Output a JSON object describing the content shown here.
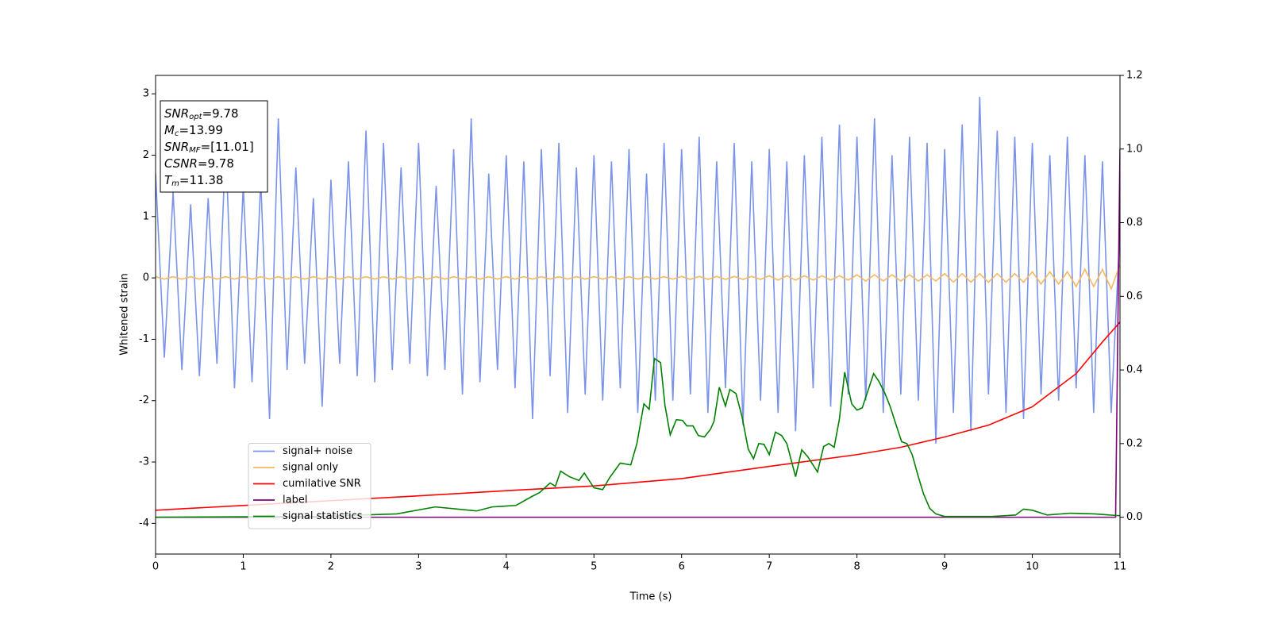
{
  "chart_data": {
    "type": "line",
    "xlabel": "Time (s)",
    "ylabel": "Whitened strain",
    "xlim": [
      0,
      11
    ],
    "xticks": [
      0,
      1,
      2,
      3,
      4,
      5,
      6,
      7,
      8,
      9,
      10,
      11
    ],
    "ylim": [
      -4.5,
      3.3
    ],
    "yticks": [
      -4,
      -3,
      -2,
      -1,
      0,
      1,
      2,
      3
    ],
    "y2lim": [
      -0.1,
      1.2
    ],
    "y2ticks": [
      {
        "value": 0,
        "label": "0.0"
      },
      0.2,
      0.4,
      0.6,
      0.8,
      {
        "value": 1,
        "label": "1.0"
      },
      1.2
    ],
    "legend": "lower left",
    "annotations": [
      {
        "main": "SNR",
        "sub": "opt",
        "rest": "=9.78"
      },
      {
        "main": "M",
        "sub": "c",
        "rest": "=13.99"
      },
      {
        "main": "SNR",
        "sub": "MF",
        "rest": "=[11.01]"
      },
      {
        "main": "CSNR",
        "rest": "=9.78"
      },
      {
        "main": "T",
        "sub": "m",
        "rest": "=11.38"
      }
    ],
    "series": [
      {
        "name": "signal+ noise",
        "color": "#7b93e8",
        "x": [
          0,
          0.1,
          0.2,
          0.3,
          0.4,
          0.5,
          0.6,
          0.7,
          0.8,
          0.9,
          1,
          1.1,
          1.2,
          1.3,
          1.4,
          1.5,
          1.6,
          1.7,
          1.8,
          1.9,
          2,
          2.1,
          2.2,
          2.3,
          2.4,
          2.5,
          2.6,
          2.7,
          2.8,
          2.9,
          3,
          3.1,
          3.2,
          3.3,
          3.4,
          3.5,
          3.6,
          3.7,
          3.8,
          3.9,
          4,
          4.1,
          4.2,
          4.3,
          4.4,
          4.5,
          4.6,
          4.7,
          4.8,
          4.9,
          5,
          5.1,
          5.2,
          5.3,
          5.4,
          5.5,
          5.6,
          5.7,
          5.8,
          5.9,
          6,
          6.1,
          6.2,
          6.3,
          6.4,
          6.5,
          6.6,
          6.7,
          6.8,
          6.9,
          7,
          7.1,
          7.2,
          7.3,
          7.4,
          7.5,
          7.6,
          7.7,
          7.8,
          7.9,
          8,
          8.1,
          8.2,
          8.3,
          8.4,
          8.5,
          8.6,
          8.7,
          8.8,
          8.9,
          9,
          9.1,
          9.2,
          9.3,
          9.4,
          9.5,
          9.6,
          9.7,
          9.8,
          9.9,
          10,
          10.1,
          10.2,
          10.3,
          10.4,
          10.5,
          10.6,
          10.7,
          10.8,
          10.9,
          11
        ],
        "values": [
          1.7,
          -1.3,
          1.4,
          -1.5,
          1.2,
          -1.6,
          1.3,
          -1.4,
          2.2,
          -1.8,
          1.5,
          -1.7,
          1.6,
          -2.3,
          2.6,
          -1.5,
          1.8,
          -1.4,
          1.3,
          -2.1,
          1.6,
          -1.4,
          1.9,
          -1.6,
          2.4,
          -1.7,
          2.2,
          -1.5,
          1.8,
          -1.4,
          2.2,
          -1.6,
          1.5,
          -1.5,
          2.1,
          -1.9,
          2.6,
          -1.7,
          1.7,
          -1.5,
          2.0,
          -1.8,
          1.9,
          -2.3,
          2.1,
          -1.6,
          2.2,
          -2.2,
          1.8,
          -1.9,
          2.0,
          -2.0,
          1.9,
          -1.8,
          2.1,
          -2.2,
          1.7,
          -2.0,
          2.2,
          -2.0,
          2.1,
          -1.9,
          2.3,
          -2.2,
          1.9,
          -1.8,
          2.2,
          -2.4,
          1.9,
          -2.0,
          2.1,
          -2.2,
          1.9,
          -2.5,
          2.0,
          -1.8,
          2.3,
          -2.1,
          2.5,
          -1.9,
          2.3,
          -2.0,
          2.6,
          -2.2,
          2.0,
          -1.9,
          2.3,
          -2.0,
          2.2,
          -2.7,
          2.1,
          -2.2,
          2.5,
          -2.5,
          2.95,
          -1.9,
          2.4,
          -2.2,
          2.3,
          -2.3,
          2.2,
          -1.9,
          2.0,
          -2.0,
          2.3,
          -1.8,
          2.0,
          -2.2,
          1.9,
          -2.2,
          0.8
        ]
      },
      {
        "name": "signal only",
        "color": "#f5b860",
        "x": [
          0,
          0.1,
          0.2,
          0.3,
          0.4,
          0.5,
          0.6,
          0.7,
          0.8,
          0.9,
          1,
          1.1,
          1.2,
          1.3,
          1.4,
          1.5,
          1.6,
          1.7,
          1.8,
          1.9,
          2,
          2.1,
          2.2,
          2.3,
          2.4,
          2.5,
          2.6,
          2.7,
          2.8,
          2.9,
          3,
          3.1,
          3.2,
          3.3,
          3.4,
          3.5,
          3.6,
          3.7,
          3.8,
          3.9,
          4,
          4.1,
          4.2,
          4.3,
          4.4,
          4.5,
          4.6,
          4.7,
          4.8,
          4.9,
          5,
          5.1,
          5.2,
          5.3,
          5.4,
          5.5,
          5.6,
          5.7,
          5.8,
          5.9,
          6,
          6.1,
          6.2,
          6.3,
          6.4,
          6.5,
          6.6,
          6.7,
          6.8,
          6.9,
          7,
          7.1,
          7.2,
          7.3,
          7.4,
          7.5,
          7.6,
          7.7,
          7.8,
          7.9,
          8,
          8.1,
          8.2,
          8.3,
          8.4,
          8.5,
          8.6,
          8.7,
          8.8,
          8.9,
          9,
          9.1,
          9.2,
          9.3,
          9.4,
          9.5,
          9.6,
          9.7,
          9.8,
          9.9,
          10,
          10.1,
          10.2,
          10.3,
          10.4,
          10.5,
          10.6,
          10.7,
          10.8,
          10.9,
          11
        ],
        "values": [
          0.02,
          -0.02,
          0.02,
          -0.02,
          0.02,
          -0.02,
          0.02,
          -0.02,
          0.02,
          -0.02,
          0.02,
          -0.02,
          0.02,
          -0.02,
          0.02,
          -0.02,
          0.02,
          -0.02,
          0.02,
          -0.02,
          0.02,
          -0.02,
          0.02,
          -0.02,
          0.02,
          -0.02,
          0.02,
          -0.02,
          0.02,
          -0.02,
          0.02,
          -0.02,
          0.02,
          -0.02,
          0.02,
          -0.02,
          0.02,
          -0.02,
          0.02,
          -0.02,
          0.02,
          -0.02,
          0.02,
          -0.02,
          0.02,
          -0.02,
          0.02,
          -0.02,
          0.02,
          -0.02,
          0.02,
          -0.02,
          0.02,
          -0.02,
          0.02,
          -0.02,
          0.02,
          -0.02,
          0.02,
          -0.02,
          0.025,
          -0.025,
          0.025,
          -0.025,
          0.025,
          -0.025,
          0.025,
          -0.025,
          0.025,
          -0.025,
          0.035,
          -0.035,
          0.035,
          -0.035,
          0.035,
          -0.035,
          0.035,
          -0.035,
          0.035,
          -0.035,
          0.05,
          -0.05,
          0.05,
          -0.05,
          0.05,
          -0.05,
          0.05,
          -0.05,
          0.05,
          -0.05,
          0.07,
          -0.07,
          0.07,
          -0.07,
          0.07,
          -0.07,
          0.07,
          -0.07,
          0.07,
          -0.07,
          0.1,
          -0.1,
          0.1,
          -0.1,
          0.1,
          -0.14,
          0.14,
          -0.14,
          0.14,
          -0.18,
          0.22
        ]
      },
      {
        "name": "cumilative SNR",
        "color": "#ff0000",
        "axis": "y2",
        "x": [
          0,
          1,
          2,
          3,
          4,
          5,
          6,
          7,
          8,
          8.5,
          9,
          9.5,
          10,
          10.5,
          10.8,
          11
        ],
        "values": [
          0.019,
          0.032,
          0.045,
          0.058,
          0.072,
          0.085,
          0.105,
          0.138,
          0.17,
          0.19,
          0.218,
          0.25,
          0.3,
          0.39,
          0.476,
          0.53
        ]
      },
      {
        "name": "label",
        "color": "#800080",
        "axis": "y2",
        "x": [
          0,
          10.95,
          11
        ],
        "values": [
          0,
          0,
          1
        ]
      },
      {
        "name": "signal statistics",
        "color": "#008000",
        "axis": "y2",
        "x": [
          0,
          1.85,
          2.75,
          3.19,
          3.66,
          3.84,
          4.11,
          4.29,
          4.38,
          4.5,
          4.56,
          4.62,
          4.72,
          4.83,
          4.89,
          5,
          5.1,
          5.18,
          5.3,
          5.42,
          5.49,
          5.57,
          5.63,
          5.69,
          5.76,
          5.81,
          5.87,
          5.94,
          6.01,
          6.06,
          6.13,
          6.19,
          6.26,
          6.33,
          6.37,
          6.43,
          6.5,
          6.55,
          6.62,
          6.69,
          6.76,
          6.82,
          6.88,
          6.94,
          7,
          7.07,
          7.14,
          7.2,
          7.3,
          7.37,
          7.44,
          7.55,
          7.62,
          7.68,
          7.74,
          7.8,
          7.86,
          7.94,
          8,
          8.06,
          8.13,
          8.19,
          8.25,
          8.32,
          8.38,
          8.45,
          8.51,
          8.57,
          8.63,
          8.7,
          8.76,
          8.83,
          8.9,
          9,
          9.54,
          9.81,
          9.9,
          10,
          10.17,
          10.44,
          10.71,
          11
        ],
        "values": [
          0,
          0.002,
          0.009,
          0.028,
          0.017,
          0.028,
          0.032,
          0.056,
          0.067,
          0.093,
          0.084,
          0.125,
          0.11,
          0.1,
          0.12,
          0.08,
          0.075,
          0.108,
          0.147,
          0.142,
          0.2,
          0.308,
          0.293,
          0.431,
          0.42,
          0.304,
          0.224,
          0.265,
          0.263,
          0.248,
          0.248,
          0.222,
          0.218,
          0.239,
          0.261,
          0.353,
          0.302,
          0.347,
          0.336,
          0.272,
          0.185,
          0.159,
          0.2,
          0.198,
          0.17,
          0.231,
          0.222,
          0.2,
          0.11,
          0.183,
          0.164,
          0.123,
          0.192,
          0.2,
          0.19,
          0.267,
          0.394,
          0.308,
          0.291,
          0.297,
          0.347,
          0.39,
          0.369,
          0.336,
          0.3,
          0.248,
          0.205,
          0.2,
          0.17,
          0.11,
          0.063,
          0.024,
          0.009,
          0.002,
          0.002,
          0.006,
          0.022,
          0.019,
          0.006,
          0.011,
          0.009,
          0.004
        ]
      }
    ]
  }
}
